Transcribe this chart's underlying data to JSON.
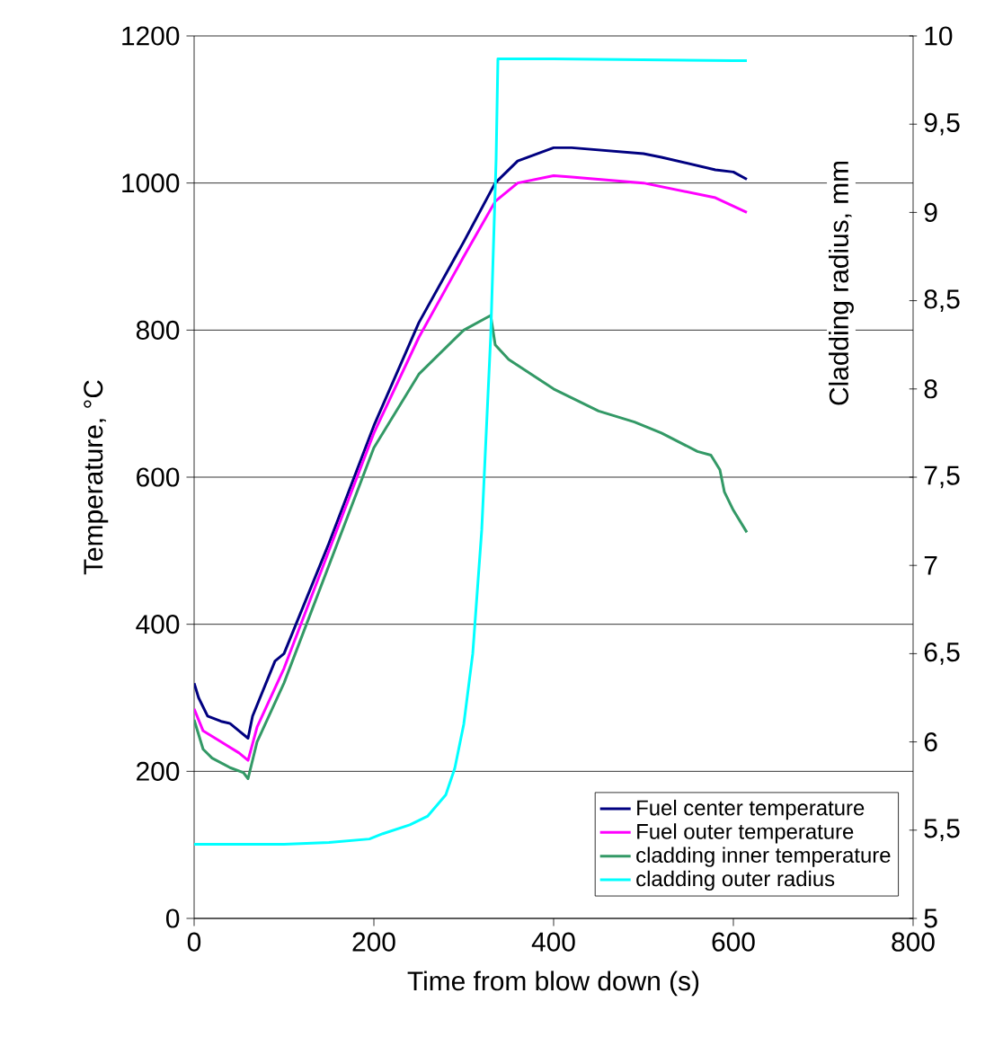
{
  "chart_data": {
    "type": "line",
    "xlabel": "Time from blow down (s)",
    "ylabel": "Temperature, °C",
    "y2label": "Cladding radius, mm",
    "xlim": [
      0,
      800
    ],
    "xticks": [
      0,
      200,
      400,
      600,
      800
    ],
    "ylim": [
      0,
      1200
    ],
    "yticks": [
      0,
      200,
      400,
      600,
      800,
      1000,
      1200
    ],
    "y2lim": [
      5,
      10
    ],
    "y2ticks": [
      5,
      {
        "value": 5.5,
        "label": "5,5"
      },
      6,
      {
        "value": 6.5,
        "label": "6,5"
      },
      7,
      {
        "value": 7.5,
        "label": "7,5"
      },
      8,
      {
        "value": 8.5,
        "label": "8,5"
      },
      9,
      {
        "value": 9.5,
        "label": "9,5"
      },
      10
    ],
    "grid": "y",
    "legend": "bottom right",
    "marker": "none",
    "line_style": "solid",
    "series": [
      {
        "name": "Fuel center temperature",
        "color": "#000080",
        "x": [
          0,
          5,
          15,
          30,
          40,
          50,
          60,
          65,
          80,
          90,
          100,
          150,
          200,
          250,
          300,
          335,
          360,
          400,
          420,
          500,
          520,
          580,
          600,
          615
        ],
        "values": [
          320,
          300,
          275,
          268,
          265,
          255,
          245,
          275,
          320,
          350,
          360,
          510,
          670,
          810,
          920,
          1000,
          1030,
          1048,
          1048,
          1040,
          1035,
          1018,
          1015,
          1005
        ]
      },
      {
        "name": "Fuel outer temperature",
        "color": "#ff00ff",
        "x": [
          0,
          10,
          30,
          50,
          60,
          70,
          100,
          150,
          200,
          250,
          300,
          335,
          360,
          400,
          420,
          500,
          580,
          615
        ],
        "values": [
          285,
          255,
          240,
          225,
          215,
          260,
          340,
          500,
          660,
          790,
          900,
          975,
          1000,
          1010,
          1008,
          1000,
          980,
          960
        ]
      },
      {
        "name": "cladding inner temperature",
        "color": "#339966",
        "x": [
          0,
          10,
          20,
          40,
          55,
          60,
          70,
          100,
          150,
          200,
          250,
          300,
          330,
          335,
          350,
          400,
          450,
          490,
          520,
          560,
          575,
          585,
          590,
          600,
          615
        ],
        "values": [
          270,
          230,
          218,
          205,
          198,
          190,
          240,
          320,
          480,
          640,
          740,
          800,
          820,
          780,
          760,
          720,
          690,
          675,
          660,
          635,
          630,
          610,
          580,
          555,
          525
        ]
      },
      {
        "name": "cladding outer radius",
        "color": "#00ffff",
        "axis": "y2",
        "x": [
          0,
          100,
          150,
          195,
          210,
          240,
          260,
          280,
          290,
          300,
          310,
          320,
          330,
          336,
          338,
          400,
          600,
          615
        ],
        "values": [
          5.42,
          5.42,
          5.43,
          5.45,
          5.48,
          5.53,
          5.58,
          5.7,
          5.85,
          6.1,
          6.5,
          7.2,
          8.3,
          9.3,
          9.87,
          9.87,
          9.86,
          9.86
        ]
      }
    ]
  }
}
